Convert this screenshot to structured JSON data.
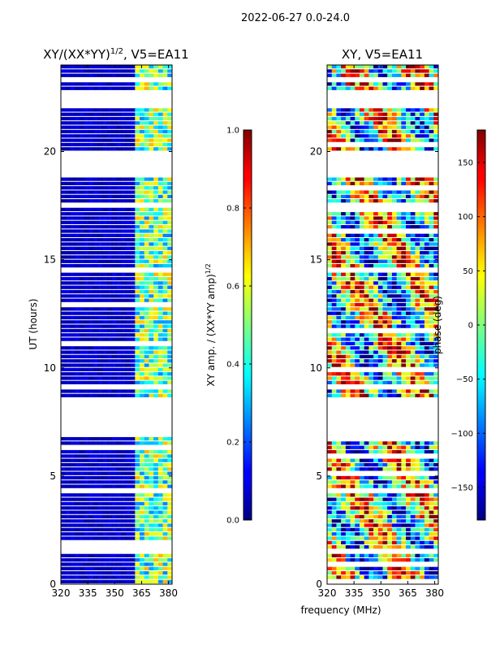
{
  "suptitle": "2022-06-27 0.0-24.0",
  "xlabel": "frequency (MHz)",
  "chart_data": [
    {
      "type": "heatmap",
      "title": "XY/(XX*YY)",
      "title_sup": "1/2",
      "title_suffix": ", V5=EA11",
      "ylabel": "UT (hours)",
      "xlim": [
        320,
        382
      ],
      "ylim": [
        0,
        24
      ],
      "xticks": [
        320,
        335,
        350,
        365,
        380
      ],
      "yticks": [
        0,
        5,
        10,
        15,
        20
      ],
      "colorbar": {
        "label": "XY amp. / (XX*YY amp)",
        "label_sup": "1/2",
        "range": [
          0.0,
          1.0
        ],
        "ticks": [
          0.0,
          0.2,
          0.4,
          0.6,
          0.8,
          1.0
        ],
        "tick_labels": [
          "0.0",
          "0.2",
          "0.4",
          "0.6",
          "0.8",
          "1.0"
        ],
        "colormap": "jet"
      },
      "gaps_hours": [
        [
          1.4,
          1.6
        ],
        [
          6.8,
          8.7
        ],
        [
          9.0,
          9.1
        ],
        [
          18.9,
          19.9
        ],
        [
          22.0,
          22.8
        ],
        [
          23.2,
          23.4
        ]
      ]
    },
    {
      "type": "heatmap",
      "title": "XY, V5=EA11",
      "xlim": [
        320,
        382
      ],
      "ylim": [
        0,
        24
      ],
      "xticks": [
        320,
        335,
        350,
        365,
        380
      ],
      "yticks": [
        0,
        5,
        10,
        15,
        20
      ],
      "colorbar": {
        "label": "phase (deg)",
        "range": [
          -180,
          180
        ],
        "ticks": [
          -150,
          -100,
          -50,
          0,
          50,
          100,
          150
        ],
        "tick_labels": [
          "−150",
          "−100",
          "−50",
          "0",
          "50",
          "100",
          "150"
        ],
        "colormap": "jet"
      },
      "gaps_hours": [
        [
          1.4,
          1.6
        ],
        [
          6.8,
          8.7
        ],
        [
          9.0,
          9.1
        ],
        [
          18.9,
          19.9
        ],
        [
          22.0,
          22.8
        ],
        [
          23.2,
          23.4
        ]
      ]
    }
  ]
}
